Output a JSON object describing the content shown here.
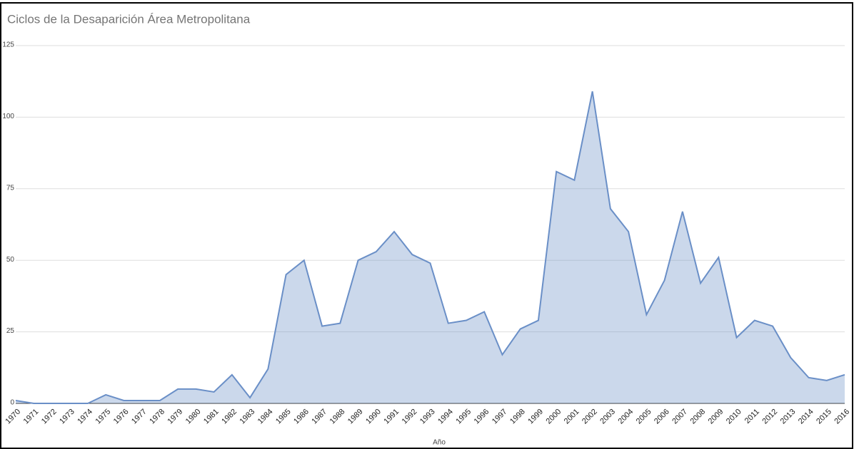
{
  "chart_data": {
    "type": "area",
    "title": "Ciclos de la Desaparición Área Metropolitana",
    "x_label": "Año",
    "categories": [
      "1970",
      "1971",
      "1972",
      "1973",
      "1974",
      "1975",
      "1976",
      "1977",
      "1978",
      "1979",
      "1980",
      "1981",
      "1982",
      "1983",
      "1984",
      "1985",
      "1986",
      "1987",
      "1988",
      "1989",
      "1990",
      "1991",
      "1992",
      "1993",
      "1994",
      "1995",
      "1996",
      "1997",
      "1998",
      "1999",
      "2000",
      "2001",
      "2002",
      "2003",
      "2004",
      "2005",
      "2006",
      "2007",
      "2008",
      "2009",
      "2010",
      "2011",
      "2012",
      "2013",
      "2014",
      "2015",
      "2016"
    ],
    "values": [
      1,
      0,
      0,
      0,
      0,
      3,
      1,
      1,
      1,
      5,
      5,
      4,
      10,
      2,
      12,
      45,
      50,
      27,
      28,
      50,
      53,
      60,
      52,
      49,
      28,
      29,
      32,
      17,
      26,
      29,
      81,
      78,
      109,
      68,
      60,
      31,
      43,
      67,
      42,
      51,
      23,
      29,
      27,
      16,
      9,
      8,
      10
    ],
    "color": "#6a8fc7",
    "ylim": [
      0,
      125
    ],
    "yticks": [
      0,
      25,
      50,
      75,
      100,
      125
    ],
    "grid": true
  }
}
